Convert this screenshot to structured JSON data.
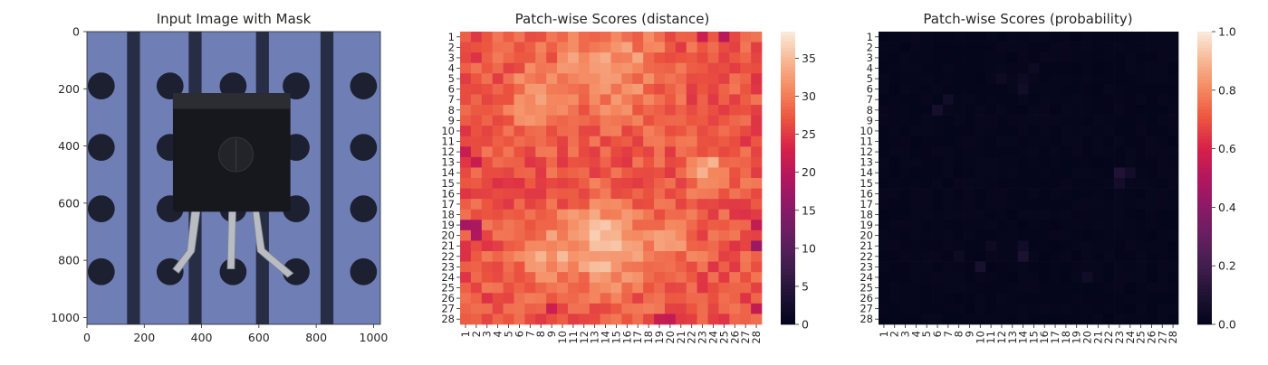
{
  "panels": {
    "image": {
      "title": "Input Image with Mask",
      "x_ticks": [
        "0",
        "200",
        "400",
        "600",
        "800",
        "1000"
      ],
      "y_ticks": [
        "0",
        "200",
        "400",
        "600",
        "800",
        "1000"
      ],
      "colors": {
        "background": "#6f7fb6",
        "stripe": "#262d44",
        "hole": "#1c2030",
        "component": "#17181d",
        "lead": "#b9bcc2"
      }
    },
    "distance": {
      "title": "Patch-wise Scores (distance)",
      "colorbar_ticks": [
        "0",
        "5",
        "10",
        "15",
        "20",
        "25",
        "30",
        "35"
      ],
      "colorbar_range": [
        0,
        38.5
      ]
    },
    "probability": {
      "title": "Patch-wise Scores (probability)",
      "colorbar_ticks": [
        "0.0",
        "0.2",
        "0.4",
        "0.6",
        "0.8",
        "1.0"
      ],
      "colorbar_range": [
        0,
        1
      ]
    }
  },
  "chart_data": [
    {
      "type": "image",
      "title": "Input Image with Mask",
      "xlim": [
        0,
        1024
      ],
      "ylim": [
        1024,
        0
      ],
      "xticks": [
        0,
        200,
        400,
        600,
        800,
        1000
      ],
      "yticks": [
        0,
        200,
        400,
        600,
        800,
        1000
      ]
    },
    {
      "type": "heatmap",
      "title": "Patch-wise Scores (distance)",
      "rows": 28,
      "cols": 28,
      "row_labels": [
        "1",
        "2",
        "3",
        "4",
        "5",
        "6",
        "7",
        "8",
        "9",
        "10",
        "11",
        "12",
        "13",
        "14",
        "15",
        "16",
        "17",
        "18",
        "19",
        "20",
        "21",
        "22",
        "23",
        "24",
        "25",
        "26",
        "27",
        "28"
      ],
      "col_labels": [
        "1",
        "2",
        "3",
        "4",
        "5",
        "6",
        "7",
        "8",
        "9",
        "10",
        "11",
        "12",
        "13",
        "14",
        "15",
        "16",
        "17",
        "18",
        "19",
        "20",
        "21",
        "22",
        "23",
        "24",
        "25",
        "26",
        "27",
        "28"
      ],
      "vmin": 0,
      "vmax": 38.5,
      "colormap": "rocket",
      "base_value": 27,
      "hotspots": [
        {
          "row": 4,
          "col": 14,
          "peak": 33,
          "spread": 3.2
        },
        {
          "row": 7,
          "col": 8,
          "peak": 32,
          "spread": 2.2
        },
        {
          "row": 21,
          "col": 14,
          "peak": 35,
          "spread": 3.0
        },
        {
          "row": 22,
          "col": 9,
          "peak": 33,
          "spread": 2.2
        },
        {
          "row": 21,
          "col": 19,
          "peak": 32,
          "spread": 2.2
        },
        {
          "row": 14,
          "col": 24,
          "peak": 33,
          "spread": 1.4
        }
      ],
      "low_cells": [
        {
          "row": 19,
          "col": 1,
          "value": 18
        },
        {
          "row": 19,
          "col": 2,
          "value": 18.5
        },
        {
          "row": 20,
          "col": 2,
          "value": 19
        },
        {
          "row": 21,
          "col": 28,
          "value": 17
        },
        {
          "row": 1,
          "col": 25,
          "value": 20
        },
        {
          "row": 19,
          "col": 28,
          "value": 21
        },
        {
          "row": 12,
          "col": 1,
          "value": 21.5
        },
        {
          "row": 13,
          "col": 2,
          "value": 21.5
        },
        {
          "row": 27,
          "col": 28,
          "value": 21
        },
        {
          "row": 28,
          "col": 20,
          "value": 21
        },
        {
          "row": 28,
          "col": 19,
          "value": 21.5
        },
        {
          "row": 1,
          "col": 23,
          "value": 22
        },
        {
          "row": 27,
          "col": 9,
          "value": 22
        }
      ]
    },
    {
      "type": "heatmap",
      "title": "Patch-wise Scores (probability)",
      "rows": 28,
      "cols": 28,
      "row_labels": [
        "1",
        "2",
        "3",
        "4",
        "5",
        "6",
        "7",
        "8",
        "9",
        "10",
        "11",
        "12",
        "13",
        "14",
        "15",
        "16",
        "17",
        "18",
        "19",
        "20",
        "21",
        "22",
        "23",
        "24",
        "25",
        "26",
        "27",
        "28"
      ],
      "col_labels": [
        "1",
        "2",
        "3",
        "4",
        "5",
        "6",
        "7",
        "8",
        "9",
        "10",
        "11",
        "12",
        "13",
        "14",
        "15",
        "16",
        "17",
        "18",
        "19",
        "20",
        "21",
        "22",
        "23",
        "24",
        "25",
        "26",
        "27",
        "28"
      ],
      "vmin": 0,
      "vmax": 1,
      "colormap": "rocket",
      "base_value": 0.01,
      "elevated_cells": [
        {
          "row": 14,
          "col": 23,
          "value": 0.1
        },
        {
          "row": 15,
          "col": 23,
          "value": 0.06
        },
        {
          "row": 14,
          "col": 24,
          "value": 0.06
        },
        {
          "row": 22,
          "col": 14,
          "value": 0.09
        },
        {
          "row": 23,
          "col": 10,
          "value": 0.08
        },
        {
          "row": 8,
          "col": 6,
          "value": 0.07
        },
        {
          "row": 7,
          "col": 7,
          "value": 0.05
        },
        {
          "row": 21,
          "col": 14,
          "value": 0.05
        },
        {
          "row": 6,
          "col": 14,
          "value": 0.05
        },
        {
          "row": 5,
          "col": 14,
          "value": 0.04
        },
        {
          "row": 5,
          "col": 12,
          "value": 0.04
        },
        {
          "row": 21,
          "col": 11,
          "value": 0.04
        },
        {
          "row": 24,
          "col": 20,
          "value": 0.05
        },
        {
          "row": 22,
          "col": 8,
          "value": 0.04
        },
        {
          "row": 4,
          "col": 15,
          "value": 0.04
        }
      ]
    }
  ]
}
